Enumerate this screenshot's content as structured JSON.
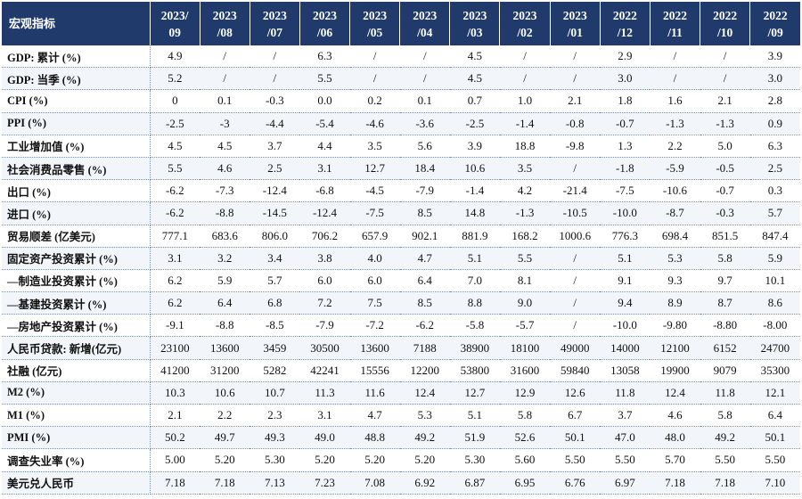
{
  "header_label": "宏观指标",
  "periods": [
    [
      "2023/",
      "09"
    ],
    [
      "2023",
      "/08"
    ],
    [
      "2023",
      "/07"
    ],
    [
      "2023",
      "/06"
    ],
    [
      "2023",
      "/05"
    ],
    [
      "2023",
      "/04"
    ],
    [
      "2023",
      "/03"
    ],
    [
      "2023",
      "/02"
    ],
    [
      "2023",
      "/01"
    ],
    [
      "2022",
      "/12"
    ],
    [
      "2022",
      "/11"
    ],
    [
      "2022",
      "/10"
    ],
    [
      "2022",
      "/09"
    ]
  ],
  "rows": [
    {
      "label": "GDP: 累计 (%)",
      "values": [
        "4.9",
        "/",
        "/",
        "6.3",
        "/",
        "/",
        "4.5",
        "/",
        "/",
        "2.9",
        "/",
        "/",
        "3.9"
      ]
    },
    {
      "label": "GDP: 当季 (%)",
      "values": [
        "5.2",
        "/",
        "/",
        "5.5",
        "/",
        "/",
        "4.5",
        "/",
        "/",
        "3.0",
        "/",
        "/",
        "3.0"
      ]
    },
    {
      "label": "CPI (%)",
      "values": [
        "0",
        "0.1",
        "-0.3",
        "0.0",
        "0.2",
        "0.1",
        "0.7",
        "1.0",
        "2.1",
        "1.8",
        "1.6",
        "2.1",
        "2.8"
      ]
    },
    {
      "label": "PPI (%)",
      "values": [
        "-2.5",
        "-3",
        "-4.4",
        "-5.4",
        "-4.6",
        "-3.6",
        "-2.5",
        "-1.4",
        "-0.8",
        "-0.7",
        "-1.3",
        "-1.3",
        "0.9"
      ]
    },
    {
      "label": "工业增加值 (%)",
      "values": [
        "4.5",
        "4.5",
        "3.7",
        "4.4",
        "3.5",
        "5.6",
        "3.9",
        "18.8",
        "-9.8",
        "1.3",
        "2.2",
        "5.0",
        "6.3"
      ]
    },
    {
      "label": "社会消费品零售 (%)",
      "values": [
        "5.5",
        "4.6",
        "2.5",
        "3.1",
        "12.7",
        "18.4",
        "10.6",
        "3.5",
        "/",
        "-1.8",
        "-5.9",
        "-0.5",
        "2.5"
      ]
    },
    {
      "label": "出口 (%)",
      "values": [
        "-6.2",
        "-7.3",
        "-12.4",
        "-6.8",
        "-4.5",
        "-7.9",
        "-1.4",
        "4.2",
        "-21.4",
        "-7.5",
        "-10.6",
        "-0.7",
        "0.3"
      ]
    },
    {
      "label": "进口 (%)",
      "values": [
        "-6.2",
        "-8.8",
        "-14.5",
        "-12.4",
        "-7.5",
        "8.5",
        "14.8",
        "-1.3",
        "-10.5",
        "-10.0",
        "-8.7",
        "-0.3",
        "5.7"
      ]
    },
    {
      "label": "贸易顺差 (亿美元)",
      "values": [
        "777.1",
        "683.6",
        "806.0",
        "706.2",
        "657.9",
        "902.1",
        "881.9",
        "168.2",
        "1000.6",
        "776.3",
        "698.4",
        "851.5",
        "847.4"
      ]
    },
    {
      "label": "固定资产投资累计 (%)",
      "values": [
        "3.1",
        "3.2",
        "3.4",
        "3.8",
        "4.0",
        "4.7",
        "5.1",
        "5.5",
        "/",
        "5.1",
        "5.3",
        "5.8",
        "5.9"
      ]
    },
    {
      "label": "—制造业投资累计 (%)",
      "values": [
        "6.2",
        "5.9",
        "5.7",
        "6.0",
        "6.0",
        "6.4",
        "7.0",
        "8.1",
        "/",
        "9.1",
        "9.3",
        "9.7",
        "10.1"
      ]
    },
    {
      "label": "—基建投资累计 (%)",
      "values": [
        "6.2",
        "6.4",
        "6.8",
        "7.2",
        "7.5",
        "8.5",
        "8.8",
        "9.0",
        "/",
        "9.4",
        "8.9",
        "8.7",
        "8.6"
      ]
    },
    {
      "label": "—房地产投资累计 (%)",
      "values": [
        "-9.1",
        "-8.8",
        "-8.5",
        "-7.9",
        "-7.2",
        "-6.2",
        "-5.8",
        "-5.7",
        "/",
        "-10.0",
        "-9.80",
        "-8.80",
        "-8.00"
      ]
    },
    {
      "label": "人民币贷款: 新增(亿元)",
      "values": [
        "23100",
        "13600",
        "3459",
        "30500",
        "13600",
        "7188",
        "38900",
        "18100",
        "49000",
        "14000",
        "12100",
        "6152",
        "24700"
      ]
    },
    {
      "label": "社融 (亿元)",
      "values": [
        "41200",
        "31200",
        "5282",
        "42241",
        "15556",
        "12200",
        "53800",
        "31600",
        "59840",
        "13058",
        "19900",
        "9079",
        "35300"
      ]
    },
    {
      "label": "M2 (%)",
      "values": [
        "10.3",
        "10.6",
        "10.7",
        "11.3",
        "11.6",
        "12.4",
        "12.7",
        "12.9",
        "12.6",
        "11.8",
        "12.4",
        "11.8",
        "12.1"
      ]
    },
    {
      "label": "M1 (%)",
      "values": [
        "2.1",
        "2.2",
        "2.3",
        "3.1",
        "4.7",
        "5.3",
        "5.1",
        "5.8",
        "6.7",
        "3.7",
        "4.6",
        "5.8",
        "6.4"
      ]
    },
    {
      "label": "PMI (%)",
      "values": [
        "50.2",
        "49.7",
        "49.3",
        "49.0",
        "48.8",
        "49.2",
        "51.9",
        "52.6",
        "50.1",
        "47.0",
        "48.0",
        "49.2",
        "50.1"
      ]
    },
    {
      "label": "调查失业率 (%)",
      "values": [
        "5.00",
        "5.20",
        "5.30",
        "5.20",
        "5.20",
        "5.20",
        "5.30",
        "5.60",
        "5.50",
        "5.50",
        "5.70",
        "5.50",
        "5.50"
      ]
    },
    {
      "label": "美元兑人民币",
      "values": [
        "7.18",
        "7.18",
        "7.13",
        "7.23",
        "7.08",
        "6.92",
        "6.87",
        "6.95",
        "6.76",
        "6.97",
        "7.18",
        "7.18",
        "7.10"
      ]
    }
  ]
}
